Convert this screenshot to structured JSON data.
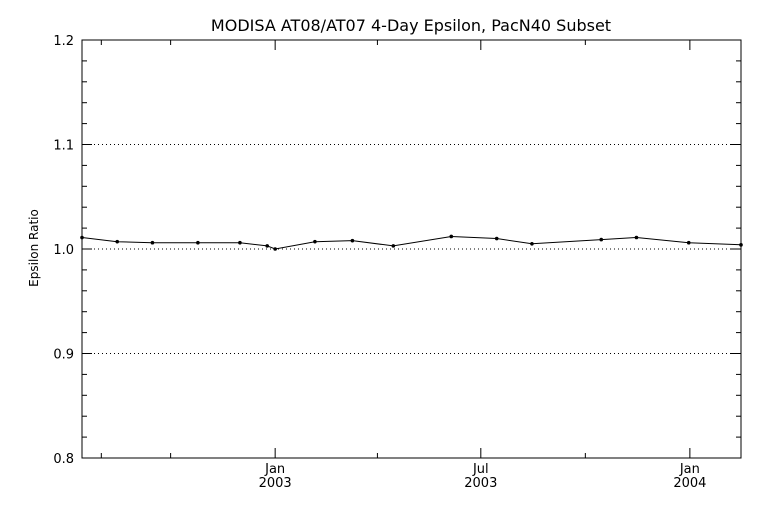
{
  "chart_data": {
    "type": "line",
    "title": "MODISA AT08/AT07 4-Day Epsilon, PacN40 Subset",
    "xlabel": "",
    "ylabel": "Epsilon Ratio",
    "ylim": [
      0.8,
      1.2
    ],
    "yticks": [
      "0.8",
      "0.9",
      "1.0",
      "1.1",
      "1.2"
    ],
    "reference_lines": [
      0.9,
      1.0,
      1.1
    ],
    "xlim": [
      "2002-07-15",
      "2004-02-15"
    ],
    "xticks": [
      {
        "date": "2003-01-01",
        "month": "Jan",
        "year": "2003"
      },
      {
        "date": "2003-07-01",
        "month": "Jul",
        "year": "2003"
      },
      {
        "date": "2004-01-01",
        "month": "Jan",
        "year": "2004"
      }
    ],
    "minor_xticks": [
      "2002-08-01",
      "2002-10-01",
      "2003-04-01",
      "2003-10-01"
    ],
    "series": [
      {
        "points": [
          {
            "x": "2002-07-15",
            "y": 1.011
          },
          {
            "x": "2002-08-15",
            "y": 1.007
          },
          {
            "x": "2002-09-15",
            "y": 1.006
          },
          {
            "x": "2002-10-25",
            "y": 1.006
          },
          {
            "x": "2002-12-01",
            "y": 1.006
          },
          {
            "x": "2002-12-25",
            "y": 1.003
          },
          {
            "x": "2003-01-01",
            "y": 1.0
          },
          {
            "x": "2003-02-05",
            "y": 1.007
          },
          {
            "x": "2003-03-10",
            "y": 1.008
          },
          {
            "x": "2003-04-15",
            "y": 1.003
          },
          {
            "x": "2003-06-05",
            "y": 1.012
          },
          {
            "x": "2003-07-15",
            "y": 1.01
          },
          {
            "x": "2003-08-15",
            "y": 1.005
          },
          {
            "x": "2003-10-15",
            "y": 1.009
          },
          {
            "x": "2003-11-15",
            "y": 1.011
          },
          {
            "x": "2003-12-31",
            "y": 1.006
          },
          {
            "x": "2004-02-15",
            "y": 1.004
          }
        ]
      }
    ]
  }
}
